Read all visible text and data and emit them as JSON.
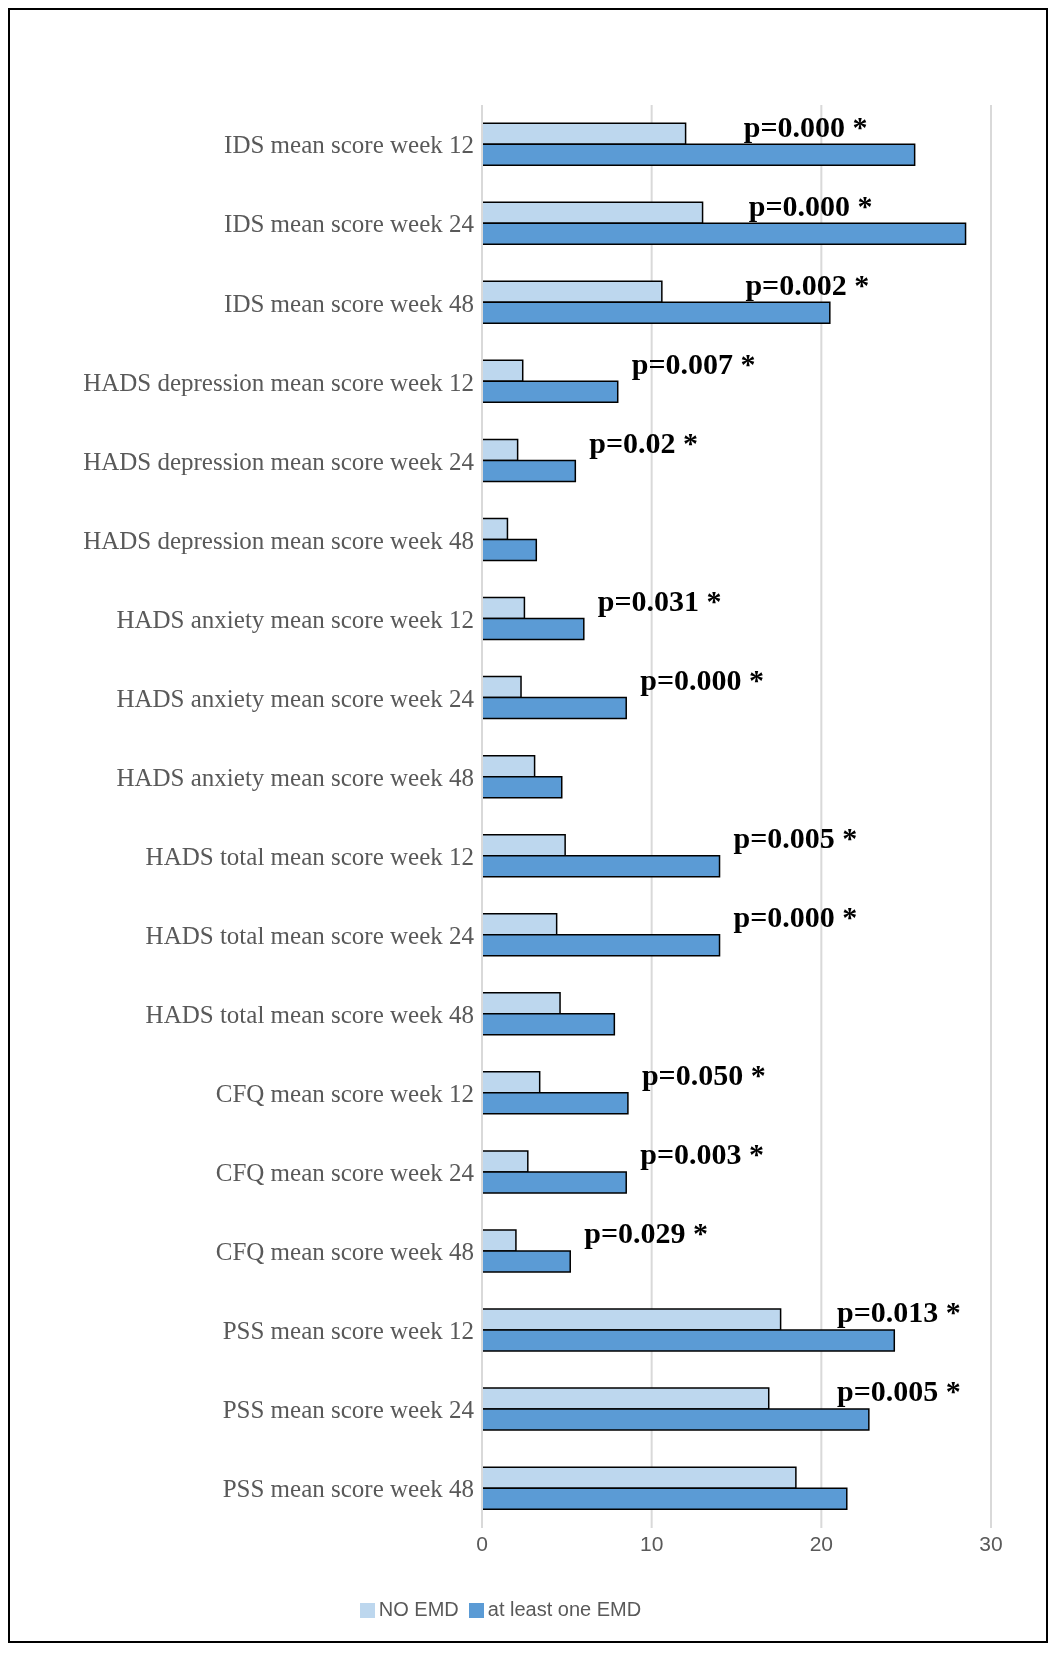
{
  "chart_data": {
    "type": "bar",
    "orientation": "horizontal",
    "categories": [
      "IDS mean score week 12",
      "IDS mean score week 24",
      "IDS mean score week 48",
      "HADS depression mean score week 12",
      "HADS depression mean score week 24",
      "HADS depression mean score week 48",
      "HADS anxiety mean score week 12",
      "HADS anxiety mean score week 24",
      "HADS anxiety mean score week 48",
      "HADS total mean score week 12",
      "HADS total mean score week 24",
      "HADS total mean score week 48",
      "CFQ mean score week 12",
      "CFQ mean score week 24",
      "CFQ mean score week 48",
      "PSS mean score week 12",
      "PSS mean score week 24",
      "PSS mean score week 48"
    ],
    "series": [
      {
        "name": "NO EMD",
        "color": "#bdd7ee",
        "values": [
          12.0,
          13.0,
          10.6,
          2.4,
          2.1,
          1.5,
          2.5,
          2.3,
          3.1,
          4.9,
          4.4,
          4.6,
          3.4,
          2.7,
          2.0,
          17.6,
          16.9,
          18.5
        ]
      },
      {
        "name": "at least one EMD",
        "color": "#5b9bd5",
        "values": [
          25.5,
          28.5,
          20.5,
          8.0,
          5.5,
          3.2,
          6.0,
          8.5,
          4.7,
          14.0,
          14.0,
          7.8,
          8.6,
          8.5,
          5.2,
          24.3,
          22.8,
          21.5
        ]
      }
    ],
    "xlim": [
      0,
      30
    ],
    "xticks": [
      0,
      10,
      20,
      30
    ],
    "grid": "x",
    "legend": "bottom",
    "annotations": [
      {
        "text": "p=0.000 *",
        "x": 14.6,
        "y": "IDS mean score week 12"
      },
      {
        "text": "p=0.000 *",
        "x": 14.9,
        "y": "IDS mean score week 24"
      },
      {
        "text": "p=0.002 *",
        "x": 14.7,
        "y": "IDS mean score week 48"
      },
      {
        "text": "p=0.007 *",
        "x": 8.0,
        "y": "HADS depression mean score week 12"
      },
      {
        "text": "p=0.02 *",
        "x": 5.5,
        "y": "HADS depression mean score week 24"
      },
      {
        "text": "p=0.031 *",
        "x": 6.0,
        "y": "HADS anxiety mean score week 12"
      },
      {
        "text": "p=0.000 *",
        "x": 8.5,
        "y": "HADS anxiety mean score week 24"
      },
      {
        "text": "p=0.005 *",
        "x": 14.0,
        "y": "HADS total mean score week 12"
      },
      {
        "text": "p=0.000 *",
        "x": 14.0,
        "y": "HADS total mean score week 24"
      },
      {
        "text": "p=0.050 *",
        "x": 8.6,
        "y": "CFQ mean score week 12"
      },
      {
        "text": "p=0.003 *",
        "x": 8.5,
        "y": "CFQ mean score week 24"
      },
      {
        "text": "p=0.029 *",
        "x": 5.2,
        "y": "CFQ mean score week 48"
      },
      {
        "text": "p=0.013 *",
        "x": 20.1,
        "y": "PSS mean score week 12"
      },
      {
        "text": "p=0.005 *",
        "x": 20.1,
        "y": "PSS mean score week 24"
      }
    ]
  }
}
